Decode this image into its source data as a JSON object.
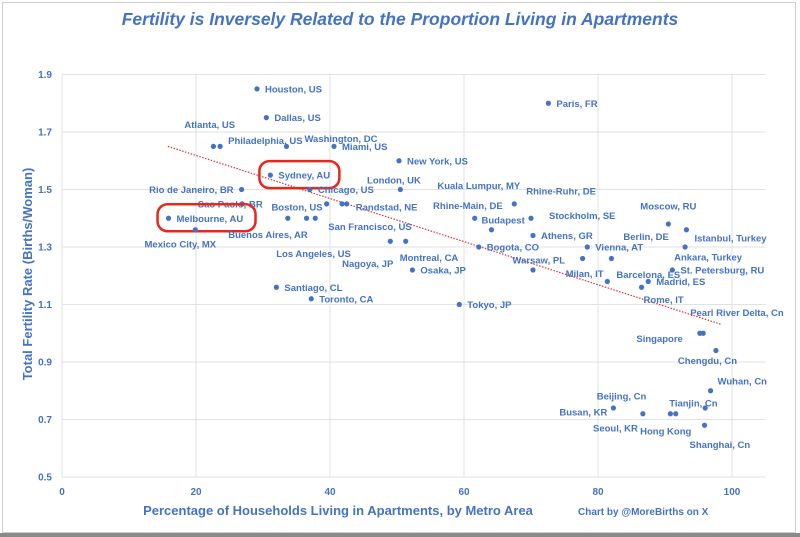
{
  "chart_data": {
    "type": "scatter",
    "title": "Fertility is Inversely Related to the Proportion Living in Apartments",
    "xlabel": "Percentage of Households Living in Apartments, by Metro Area",
    "ylabel": "Total Fertility Rate (Births/Woman)",
    "credit": "Chart by @MoreBirths on X",
    "xlim": [
      0,
      105
    ],
    "ylim": [
      0.5,
      1.9
    ],
    "xticks": [
      0,
      20,
      40,
      60,
      80,
      100
    ],
    "yticks": [
      0.5,
      0.7,
      0.9,
      1.1,
      1.3,
      1.5,
      1.7,
      1.9
    ],
    "xtick_labels": [
      "0",
      "20",
      "40",
      "60",
      "80",
      "100"
    ],
    "ytick_labels": [
      "0.5",
      "0.7",
      "0.9",
      "1.1",
      "1.3",
      "1.5",
      "1.7",
      "1.9"
    ],
    "grid": true,
    "trendline": {
      "style": "dotted",
      "color": "#E03030",
      "x": [
        15.8,
        98.5
      ],
      "y": [
        1.65,
        1.03
      ]
    },
    "highlighted": [
      "Sydney, AU",
      "Melbourne, AU"
    ],
    "highlight_color": "#E8261C",
    "point_color": "#4472C4",
    "points": [
      {
        "label": "Houston, US",
        "x": 29.1,
        "y": 1.85
      },
      {
        "label": "Dallas, US",
        "x": 30.5,
        "y": 1.75
      },
      {
        "label": "Atlanta, US",
        "x": 22.6,
        "y": 1.65
      },
      {
        "label": "Philadelphia, US",
        "x": 23.6,
        "y": 1.65
      },
      {
        "label": "Washington, DC",
        "x": 33.5,
        "y": 1.65
      },
      {
        "label": "Miami, US",
        "x": 40.6,
        "y": 1.65
      },
      {
        "label": "New York, US",
        "x": 50.3,
        "y": 1.6
      },
      {
        "label": "Paris, FR",
        "x": 72.6,
        "y": 1.8
      },
      {
        "label": "Sydney, AU",
        "x": 31.1,
        "y": 1.55
      },
      {
        "label": "Rio de Janeiro, BR",
        "x": 26.8,
        "y": 1.5
      },
      {
        "label": "Chicago, US",
        "x": 37.0,
        "y": 1.5
      },
      {
        "label": "London, UK",
        "x": 41.8,
        "y": 1.45
      },
      {
        "label": "Randstad, NE",
        "x": 42.5,
        "y": 1.45
      },
      {
        "label": "Boston, US",
        "x": 39.5,
        "y": 1.45
      },
      {
        "label": "Sao Paolo, BR",
        "x": 26.9,
        "y": 1.45
      },
      {
        "label": "Melbourne, AU",
        "x": 15.9,
        "y": 1.4
      },
      {
        "label": "Mexico City, MX",
        "x": 19.9,
        "y": 1.36
      },
      {
        "label": "Buenos Aires, AR",
        "x": 33.7,
        "y": 1.4
      },
      {
        "label": "Los Angeles, US",
        "x": 36.5,
        "y": 1.4
      },
      {
        "label": "San Francisco, US",
        "x": 37.8,
        "y": 1.4
      },
      {
        "label": "Nagoya, JP",
        "x": 49.0,
        "y": 1.32
      },
      {
        "label": "Montreal, CA",
        "x": 51.3,
        "y": 1.32
      },
      {
        "label": "Osaka, JP",
        "x": 52.3,
        "y": 1.22
      },
      {
        "label": "Santiago, CL",
        "x": 32.0,
        "y": 1.16
      },
      {
        "label": "Toronto, CA",
        "x": 37.2,
        "y": 1.12
      },
      {
        "label": "Tokyo, JP",
        "x": 59.3,
        "y": 1.1
      },
      {
        "label": "Kuala Lumpur, MY",
        "x": 50.5,
        "y": 1.5
      },
      {
        "label": "Rhine-Ruhr, DE",
        "x": 67.5,
        "y": 1.45
      },
      {
        "label": "Rhine-Main, DE",
        "x": 61.6,
        "y": 1.4
      },
      {
        "label": "Budapest",
        "x": 64.1,
        "y": 1.36
      },
      {
        "label": "Stockholm, SE",
        "x": 70.0,
        "y": 1.4
      },
      {
        "label": "Athens, GR",
        "x": 70.3,
        "y": 1.34
      },
      {
        "label": "Bogota, CO",
        "x": 62.2,
        "y": 1.3
      },
      {
        "label": "Vienna, AT",
        "x": 78.4,
        "y": 1.3
      },
      {
        "label": "Warsaw, PL",
        "x": 70.3,
        "y": 1.22
      },
      {
        "label": "Milan, IT",
        "x": 77.7,
        "y": 1.26
      },
      {
        "label": "Berlin, DE",
        "x": 82.0,
        "y": 1.26
      },
      {
        "label": "Barcelona, ES",
        "x": 81.4,
        "y": 1.18
      },
      {
        "label": "Madrid, ES",
        "x": 87.5,
        "y": 1.18
      },
      {
        "label": "Rome, IT",
        "x": 86.5,
        "y": 1.16
      },
      {
        "label": "St. Petersburg, RU",
        "x": 91.1,
        "y": 1.22
      },
      {
        "label": "Moscow, RU",
        "x": 90.5,
        "y": 1.38
      },
      {
        "label": "Istanbul, Turkey",
        "x": 93.2,
        "y": 1.36
      },
      {
        "label": "Ankara, Turkey",
        "x": 93.0,
        "y": 1.3
      },
      {
        "label": "Pearl River Delta, Cn",
        "x": 95.7,
        "y": 1.0
      },
      {
        "label": "Singapore",
        "x": 95.2,
        "y": 1.0
      },
      {
        "label": "Chengdu, Cn",
        "x": 97.6,
        "y": 0.94
      },
      {
        "label": "Wuhan, Cn",
        "x": 96.8,
        "y": 0.8
      },
      {
        "label": "Tianjin, Cn",
        "x": 96.0,
        "y": 0.74
      },
      {
        "label": "Beijing, Cn",
        "x": 90.8,
        "y": 0.72
      },
      {
        "label": "Hong Kong",
        "x": 91.6,
        "y": 0.72
      },
      {
        "label": "Seoul, KR",
        "x": 86.7,
        "y": 0.72
      },
      {
        "label": "Busan, KR",
        "x": 82.3,
        "y": 0.74
      },
      {
        "label": "Shanghai, Cn",
        "x": 95.9,
        "y": 0.68
      }
    ]
  }
}
